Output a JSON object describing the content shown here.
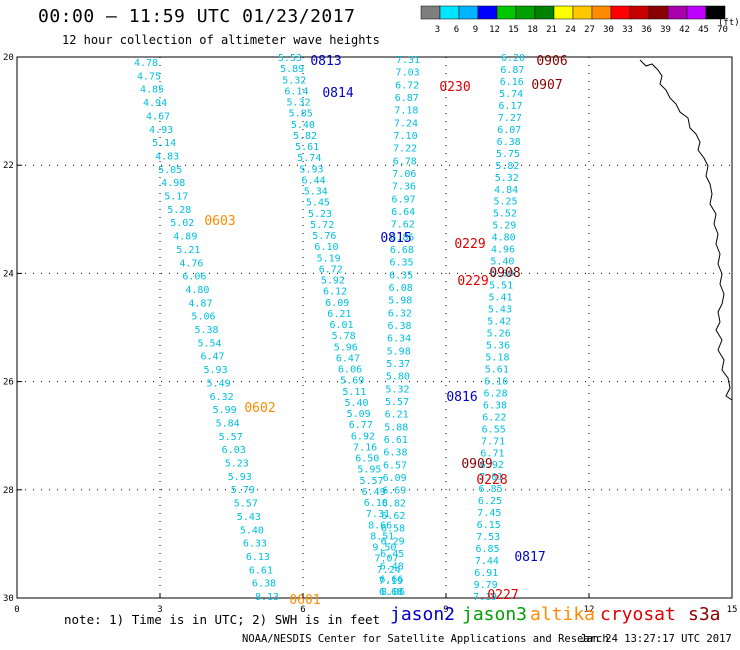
{
  "header": {
    "title": "00:00 – 11:59 UTC 01/23/2017",
    "subtitle": "12 hour collection of altimeter wave heights"
  },
  "colorbar": {
    "units": "(ft)",
    "bins": [
      {
        "label": "3",
        "color": "#7f7f7f"
      },
      {
        "label": "6",
        "color": "#00e5ff"
      },
      {
        "label": "9",
        "color": "#00b4ff"
      },
      {
        "label": "12",
        "color": "#0000ff"
      },
      {
        "label": "15",
        "color": "#00c800"
      },
      {
        "label": "18",
        "color": "#00a000"
      },
      {
        "label": "21",
        "color": "#008000"
      },
      {
        "label": "24",
        "color": "#ffff00"
      },
      {
        "label": "27",
        "color": "#ffc800"
      },
      {
        "label": "30",
        "color": "#ff8c00"
      },
      {
        "label": "33",
        "color": "#ff0000"
      },
      {
        "label": "36",
        "color": "#c80000"
      },
      {
        "label": "39",
        "color": "#8b0000"
      },
      {
        "label": "42",
        "color": "#aa00aa"
      },
      {
        "label": "45",
        "color": "#c000ff"
      },
      {
        "label": "70",
        "color": "#000000"
      }
    ]
  },
  "map": {
    "lat_ticks": [
      "20",
      "22",
      "24",
      "26",
      "28",
      "30"
    ],
    "lon_ticks": [
      "0",
      "3",
      "6",
      "9",
      "12",
      "15"
    ],
    "point_color": "#00c0e0"
  },
  "passes": [
    {
      "id": "0813",
      "color": "#0000c8"
    },
    {
      "id": "0814",
      "color": "#0000c8"
    },
    {
      "id": "0815",
      "color": "#0000c8"
    },
    {
      "id": "0816",
      "color": "#0000c8"
    },
    {
      "id": "0817",
      "color": "#0000c8"
    },
    {
      "id": "0906",
      "color": "#8b0000"
    },
    {
      "id": "0907",
      "color": "#8b0000"
    },
    {
      "id": "0908",
      "color": "#8b0000"
    },
    {
      "id": "0909",
      "color": "#8b0000"
    },
    {
      "id": "0230",
      "color": "#e00000"
    },
    {
      "id": "0229",
      "color": "#e00000"
    },
    {
      "id": "0229",
      "color": "#e00000"
    },
    {
      "id": "0228",
      "color": "#e00000"
    },
    {
      "id": "0227",
      "color": "#e00000"
    },
    {
      "id": "0603",
      "color": "#ff8c00"
    },
    {
      "id": "0602",
      "color": "#ff8c00"
    },
    {
      "id": "0601",
      "color": "#ff8c00"
    }
  ],
  "tracks": {
    "track_a": [
      "4.78",
      "4.75",
      "4.85",
      "4.94",
      "4.67",
      "4.93",
      "5.14",
      "4.83",
      "5.05",
      "4.98",
      "5.17",
      "5.28",
      "5.02",
      "4.89",
      "5.21",
      "4.76",
      "6.06",
      "4.80",
      "4.87",
      "5.06",
      "5.38",
      "5.54",
      "6.47",
      "5.93",
      "5.49",
      "6.32",
      "5.99",
      "5.84",
      "5.57",
      "6.03",
      "5.23",
      "5.93",
      "5.79",
      "5.57",
      "5.43",
      "5.40",
      "6.33",
      "6.13",
      "6.61",
      "6.38",
      "8.13"
    ],
    "track_b": [
      "5.53",
      "5.89",
      "5.32",
      "6.14",
      "5.32",
      "5.85",
      "5.40",
      "5.82",
      "5.61",
      "5.74",
      "5.93",
      "6.44",
      "5.34",
      "5.45",
      "5.23",
      "5.72",
      "5.76",
      "6.10",
      "5.19",
      "6.72",
      "5.92",
      "6.12",
      "6.09",
      "6.21",
      "6.01",
      "5.78",
      "5.96",
      "6.47",
      "6.06",
      "5.69",
      "5.11",
      "5.40",
      "5.09",
      "6.77",
      "6.92",
      "7.16",
      "6.50",
      "5.95",
      "5.57",
      "6.49",
      "6.18",
      "7.31",
      "8.66",
      "8.51",
      "9.50",
      "7.07",
      "7.24",
      "7.19",
      "8.06"
    ],
    "track_c": [
      "7.31",
      "7.03",
      "6.72",
      "6.87",
      "7.18",
      "7.24",
      "7.10",
      "7.22",
      "6.78",
      "7.06",
      "7.36",
      "6.97",
      "6.64",
      "7.62",
      "6.85",
      "6.68",
      "6.35",
      "6.35",
      "6.08",
      "5.98",
      "6.32",
      "6.38",
      "6.34",
      "5.98",
      "5.37",
      "5.80",
      "5.32",
      "5.57",
      "6.21",
      "5.88",
      "6.61",
      "6.38",
      "6.57",
      "6.09",
      "6.69",
      "6.82",
      "6.62",
      "6.58",
      "6.29",
      "6.45",
      "6.48",
      "6.66",
      "6.68"
    ],
    "track_d": [
      "6.20",
      "6.87",
      "6.16",
      "5.74",
      "6.17",
      "7.27",
      "6.07",
      "6.38",
      "5.75",
      "5.82",
      "5.32",
      "4.84",
      "5.25",
      "5.52",
      "5.29",
      "4.80",
      "4.96",
      "5.40",
      "5.30",
      "5.51",
      "5.41",
      "5.43",
      "5.42",
      "5.26",
      "5.36",
      "5.18",
      "5.61",
      "6.16",
      "6.28",
      "6.38",
      "6.22",
      "6.55",
      "7.71",
      "6.71",
      "6.92",
      "7.01",
      "6.85",
      "6.25",
      "7.45",
      "6.15",
      "7.53",
      "6.85",
      "7.44",
      "6.91",
      "9.79",
      "7.19"
    ]
  },
  "satellites": [
    {
      "name": "jason2",
      "color": "#0000c8"
    },
    {
      "name": "jason3",
      "color": "#00a000"
    },
    {
      "name": "altika",
      "color": "#ff8c00"
    },
    {
      "name": "cryosat",
      "color": "#e00000"
    },
    {
      "name": "s3a",
      "color": "#8b0000"
    }
  ],
  "footer": {
    "note": "note: 1) Time is in UTC; 2) SWH is in feet",
    "credit": "NOAA/NESDIS Center for Satellite Applications and Research",
    "timestamp": "Jan 24 13:27:17 UTC 2017"
  }
}
